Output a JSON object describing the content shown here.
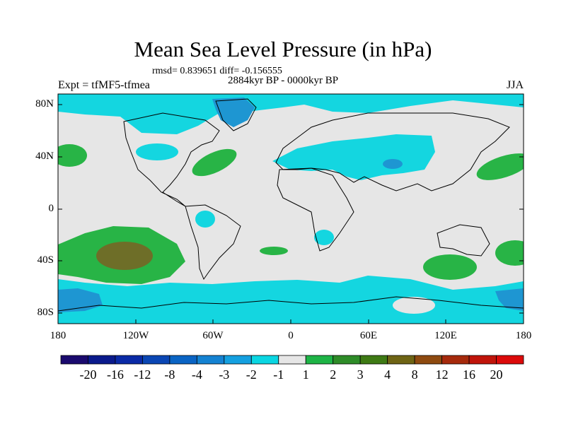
{
  "title": "Mean Sea Level Pressure (in hPa)",
  "stats": "rmsd= 0.839651 diff= -0.156555",
  "period": "2884kyr BP - 0000kyr BP",
  "experiment": "Expt = tfMF5-tfmea",
  "season": "JJA",
  "axes": {
    "lat_labels": [
      "80N",
      "40N",
      "0",
      "40S",
      "80S"
    ],
    "lon_labels": [
      "180",
      "120W",
      "60W",
      "0",
      "60E",
      "120E",
      "180"
    ]
  },
  "colorbar": {
    "labels": [
      "-20",
      "-16",
      "-12",
      "-8",
      "-4",
      "-3",
      "-2",
      "-1",
      "1",
      "2",
      "3",
      "4",
      "8",
      "12",
      "16",
      "20"
    ],
    "colors": [
      "#1a0a6e",
      "#0a1a8c",
      "#0a2aa6",
      "#0a46b4",
      "#0a64c4",
      "#1482d2",
      "#14a0e0",
      "#0ad6e2",
      "#e6e6e6",
      "#1eb446",
      "#2e8c28",
      "#3e7a14",
      "#6e6414",
      "#8e4a10",
      "#a62a0c",
      "#c0140a",
      "#dc0a0a"
    ]
  },
  "palette": {
    "neutral": "#e6e6e6",
    "cyan": "#14d6e0",
    "blue": "#1e96d2",
    "green": "#28b446",
    "olive": "#6e6e28"
  }
}
